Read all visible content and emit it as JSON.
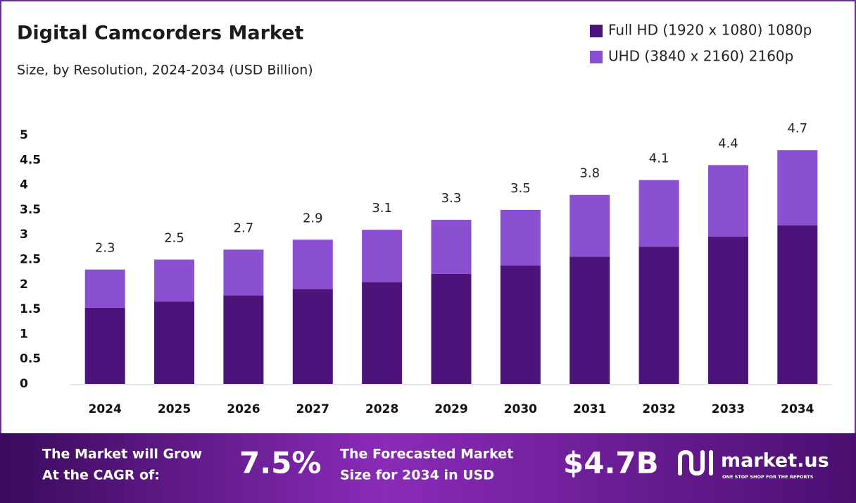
{
  "chart_data": {
    "type": "bar",
    "stacked": true,
    "title": "Digital Camcorders Market",
    "subtitle": "Size, by Resolution, 2024-2034 (USD Billion)",
    "categories": [
      "2024",
      "2025",
      "2026",
      "2027",
      "2028",
      "2029",
      "2030",
      "2031",
      "2032",
      "2033",
      "2034"
    ],
    "series": [
      {
        "name": "Full HD (1920 x 1080) 1080p",
        "color": "#4c137a",
        "values": [
          1.53,
          1.66,
          1.78,
          1.91,
          2.05,
          2.21,
          2.38,
          2.56,
          2.76,
          2.96,
          3.19
        ]
      },
      {
        "name": "UHD (3840 x 2160) 2160p",
        "color": "#8b4fd1",
        "values": [
          0.77,
          0.84,
          0.92,
          0.99,
          1.05,
          1.09,
          1.12,
          1.24,
          1.34,
          1.44,
          1.51
        ]
      }
    ],
    "totals": [
      2.3,
      2.5,
      2.7,
      2.9,
      3.1,
      3.3,
      3.5,
      3.8,
      4.1,
      4.4,
      4.7
    ],
    "ylim": [
      0,
      5
    ],
    "yticks": [
      0,
      0.5,
      1,
      1.5,
      2,
      2.5,
      3,
      3.5,
      4,
      4.5,
      5
    ],
    "grid": false,
    "legend": "top-right"
  },
  "footer": {
    "cagr_text": [
      "The Market will Grow",
      "At the CAGR of:"
    ],
    "cagr": "7.5%",
    "forecast_text": [
      "The Forecasted Market",
      "Size for 2034 in USD"
    ],
    "forecast": "$4.7B",
    "brand": "market.us",
    "tagline": "ONE STOP SHOP FOR THE REPORTS"
  }
}
